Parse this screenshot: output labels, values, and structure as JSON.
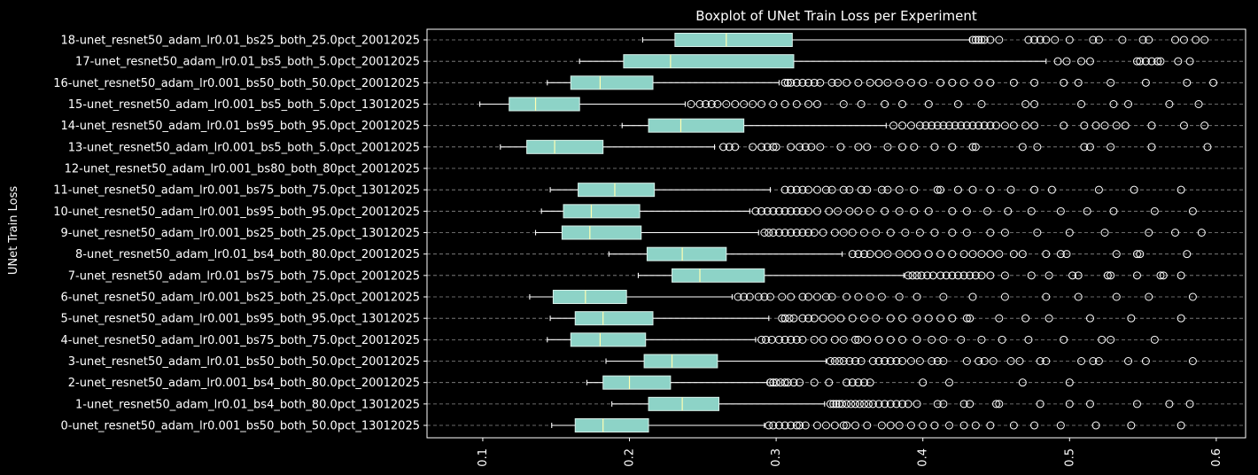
{
  "chart_data": {
    "type": "boxplot",
    "orientation": "horizontal",
    "title": "Boxplot of UNet Train Loss per Experiment",
    "xlabel": "",
    "ylabel": "UNet Train Loss",
    "xlim": [
      0.062,
      0.62
    ],
    "xticks": [
      0.1,
      0.2,
      0.3,
      0.4,
      0.5,
      0.6
    ],
    "xtick_labels": [
      "0.1",
      "0.2",
      "0.3",
      "0.4",
      "0.5",
      "0.6"
    ],
    "grid": "horizontal dashed",
    "colors": {
      "box_fill": "#8dd3c7",
      "median": "#ffffb3",
      "whisker": "#ffffff",
      "grid": "#bbbbbb",
      "background": "#000000",
      "text": "#ffffff"
    },
    "series": [
      {
        "label": "0-unet_resnet50_adam_lr0.001_bs50_both_50.0pct_13012025",
        "whislo": 0.147,
        "q1": 0.163,
        "med": 0.182,
        "q3": 0.213,
        "whishi": 0.292,
        "fliers": [
          0.295,
          0.298,
          0.302,
          0.306,
          0.31,
          0.314,
          0.316,
          0.32,
          0.328,
          0.334,
          0.34,
          0.346,
          0.348,
          0.354,
          0.362,
          0.372,
          0.378,
          0.384,
          0.392,
          0.4,
          0.408,
          0.418,
          0.428,
          0.436,
          0.446,
          0.462,
          0.476,
          0.494,
          0.518,
          0.542,
          0.576
        ]
      },
      {
        "label": "1-unet_resnet50_adam_lr0.01_bs4_both_80.0pct_13012025",
        "whislo": 0.188,
        "q1": 0.213,
        "med": 0.236,
        "q3": 0.261,
        "whishi": 0.333,
        "fliers": [
          0.337,
          0.339,
          0.341,
          0.343,
          0.345,
          0.348,
          0.351,
          0.354,
          0.357,
          0.36,
          0.363,
          0.366,
          0.37,
          0.374,
          0.378,
          0.382,
          0.386,
          0.39,
          0.396,
          0.41,
          0.414,
          0.428,
          0.432,
          0.45,
          0.452,
          0.48,
          0.5,
          0.514,
          0.546,
          0.568,
          0.582
        ]
      },
      {
        "label": "2-unet_resnet50_adam_lr0.001_bs4_both_80.0pct_20012025",
        "whislo": 0.171,
        "q1": 0.182,
        "med": 0.2,
        "q3": 0.228,
        "whishi": 0.294,
        "fliers": [
          0.296,
          0.298,
          0.3,
          0.303,
          0.306,
          0.308,
          0.312,
          0.316,
          0.326,
          0.336,
          0.348,
          0.352,
          0.356,
          0.36,
          0.364,
          0.4,
          0.418,
          0.468,
          0.5
        ]
      },
      {
        "label": "3-unet_resnet50_adam_lr0.01_bs50_both_50.0pct_20012025",
        "whislo": 0.184,
        "q1": 0.21,
        "med": 0.229,
        "q3": 0.26,
        "whishi": 0.334,
        "fliers": [
          0.337,
          0.34,
          0.343,
          0.346,
          0.35,
          0.354,
          0.358,
          0.366,
          0.37,
          0.374,
          0.378,
          0.382,
          0.386,
          0.392,
          0.398,
          0.406,
          0.41,
          0.414,
          0.43,
          0.438,
          0.442,
          0.448,
          0.46,
          0.466,
          0.48,
          0.484,
          0.508,
          0.516,
          0.52,
          0.54,
          0.552,
          0.584
        ]
      },
      {
        "label": "4-unet_resnet50_adam_lr0.001_bs75_both_75.0pct_20012025",
        "whislo": 0.144,
        "q1": 0.16,
        "med": 0.18,
        "q3": 0.211,
        "whishi": 0.286,
        "fliers": [
          0.29,
          0.293,
          0.297,
          0.302,
          0.306,
          0.31,
          0.314,
          0.318,
          0.326,
          0.332,
          0.34,
          0.346,
          0.354,
          0.356,
          0.362,
          0.37,
          0.378,
          0.386,
          0.396,
          0.406,
          0.414,
          0.426,
          0.44,
          0.454,
          0.472,
          0.496,
          0.522,
          0.528,
          0.558
        ]
      },
      {
        "label": "5-unet_resnet50_adam_lr0.001_bs95_both_95.0pct_13012025",
        "whislo": 0.146,
        "q1": 0.163,
        "med": 0.182,
        "q3": 0.216,
        "whishi": 0.295,
        "fliers": [
          0.304,
          0.306,
          0.309,
          0.312,
          0.318,
          0.322,
          0.326,
          0.332,
          0.338,
          0.344,
          0.352,
          0.36,
          0.368,
          0.378,
          0.386,
          0.396,
          0.404,
          0.412,
          0.42,
          0.43,
          0.432,
          0.452,
          0.47,
          0.486,
          0.514,
          0.542,
          0.576
        ]
      },
      {
        "label": "6-unet_resnet50_adam_lr0.001_bs25_both_25.0pct_20012025",
        "whislo": 0.132,
        "q1": 0.148,
        "med": 0.17,
        "q3": 0.198,
        "whishi": 0.27,
        "fliers": [
          0.274,
          0.278,
          0.282,
          0.288,
          0.292,
          0.296,
          0.304,
          0.31,
          0.318,
          0.322,
          0.328,
          0.334,
          0.338,
          0.348,
          0.356,
          0.364,
          0.372,
          0.384,
          0.396,
          0.414,
          0.434,
          0.456,
          0.484,
          0.506,
          0.532,
          0.554,
          0.584
        ]
      },
      {
        "label": "7-unet_resnet50_adam_lr0.01_bs75_both_75.0pct_20012025",
        "whislo": 0.206,
        "q1": 0.229,
        "med": 0.248,
        "q3": 0.292,
        "whishi": 0.387,
        "fliers": [
          0.39,
          0.393,
          0.396,
          0.399,
          0.403,
          0.407,
          0.412,
          0.416,
          0.42,
          0.424,
          0.428,
          0.432,
          0.436,
          0.44,
          0.446,
          0.456,
          0.474,
          0.486,
          0.502,
          0.506,
          0.526,
          0.528,
          0.546,
          0.562,
          0.564,
          0.576
        ]
      },
      {
        "label": "8-unet_resnet50_adam_lr0.01_bs4_both_80.0pct_20012025",
        "whislo": 0.186,
        "q1": 0.212,
        "med": 0.236,
        "q3": 0.266,
        "whishi": 0.345,
        "fliers": [
          0.352,
          0.356,
          0.36,
          0.364,
          0.37,
          0.376,
          0.384,
          0.39,
          0.396,
          0.404,
          0.412,
          0.42,
          0.428,
          0.434,
          0.44,
          0.446,
          0.452,
          0.462,
          0.468,
          0.484,
          0.494,
          0.498,
          0.532,
          0.546,
          0.548,
          0.58
        ]
      },
      {
        "label": "9-unet_resnet50_adam_lr0.001_bs25_both_25.0pct_13012025",
        "whislo": 0.136,
        "q1": 0.154,
        "med": 0.173,
        "q3": 0.208,
        "whishi": 0.288,
        "fliers": [
          0.292,
          0.295,
          0.298,
          0.302,
          0.306,
          0.31,
          0.314,
          0.318,
          0.322,
          0.326,
          0.332,
          0.34,
          0.346,
          0.352,
          0.36,
          0.368,
          0.378,
          0.388,
          0.398,
          0.408,
          0.42,
          0.43,
          0.446,
          0.456,
          0.478,
          0.5,
          0.524,
          0.554,
          0.572,
          0.59
        ]
      },
      {
        "label": "10-unet_resnet50_adam_lr0.001_bs95_both_95.0pct_20012025",
        "whislo": 0.14,
        "q1": 0.155,
        "med": 0.174,
        "q3": 0.207,
        "whishi": 0.282,
        "fliers": [
          0.286,
          0.29,
          0.294,
          0.298,
          0.302,
          0.306,
          0.31,
          0.314,
          0.318,
          0.322,
          0.328,
          0.336,
          0.342,
          0.35,
          0.356,
          0.364,
          0.374,
          0.384,
          0.394,
          0.404,
          0.42,
          0.43,
          0.444,
          0.458,
          0.474,
          0.494,
          0.512,
          0.53,
          0.558,
          0.584
        ]
      },
      {
        "label": "11-unet_resnet50_adam_lr0.001_bs75_both_75.0pct_13012025",
        "whislo": 0.146,
        "q1": 0.165,
        "med": 0.19,
        "q3": 0.217,
        "whishi": 0.296,
        "fliers": [
          0.306,
          0.31,
          0.314,
          0.318,
          0.322,
          0.328,
          0.334,
          0.338,
          0.346,
          0.35,
          0.358,
          0.362,
          0.372,
          0.376,
          0.384,
          0.394,
          0.41,
          0.412,
          0.424,
          0.434,
          0.446,
          0.46,
          0.476,
          0.488,
          0.52,
          0.544,
          0.576
        ]
      },
      {
        "label": "12-unet_resnet50_adam_lr0.001_bs80_both_80pct_20012025",
        "empty": true
      },
      {
        "label": "13-unet_resnet50_adam_lr0.001_bs5_both_5.0pct_20012025",
        "whislo": 0.112,
        "q1": 0.13,
        "med": 0.149,
        "q3": 0.182,
        "whishi": 0.258,
        "fliers": [
          0.264,
          0.268,
          0.272,
          0.284,
          0.29,
          0.294,
          0.298,
          0.3,
          0.31,
          0.316,
          0.32,
          0.324,
          0.33,
          0.344,
          0.356,
          0.362,
          0.376,
          0.386,
          0.394,
          0.408,
          0.42,
          0.434,
          0.436,
          0.468,
          0.478,
          0.51,
          0.514,
          0.528,
          0.556,
          0.594
        ]
      },
      {
        "label": "14-unet_resnet50_adam_lr0.01_bs95_both_95.0pct_20012025",
        "whislo": 0.195,
        "q1": 0.213,
        "med": 0.235,
        "q3": 0.278,
        "whishi": 0.375,
        "fliers": [
          0.38,
          0.386,
          0.392,
          0.398,
          0.402,
          0.406,
          0.41,
          0.414,
          0.418,
          0.422,
          0.426,
          0.43,
          0.434,
          0.438,
          0.442,
          0.446,
          0.45,
          0.456,
          0.462,
          0.47,
          0.476,
          0.496,
          0.51,
          0.518,
          0.524,
          0.532,
          0.538,
          0.556,
          0.578,
          0.592
        ]
      },
      {
        "label": "15-unet_resnet50_adam_lr0.001_bs5_both_5.0pct_13012025",
        "whislo": 0.098,
        "q1": 0.118,
        "med": 0.136,
        "q3": 0.166,
        "whishi": 0.238,
        "fliers": [
          0.242,
          0.248,
          0.252,
          0.256,
          0.26,
          0.266,
          0.272,
          0.278,
          0.284,
          0.29,
          0.298,
          0.306,
          0.314,
          0.322,
          0.328,
          0.346,
          0.358,
          0.374,
          0.386,
          0.404,
          0.424,
          0.44,
          0.47,
          0.476,
          0.508,
          0.53,
          0.54,
          0.568,
          0.588
        ]
      },
      {
        "label": "16-unet_resnet50_adam_lr0.001_bs50_both_50.0pct_20012025",
        "whislo": 0.144,
        "q1": 0.16,
        "med": 0.18,
        "q3": 0.216,
        "whishi": 0.302,
        "fliers": [
          0.306,
          0.308,
          0.31,
          0.314,
          0.318,
          0.322,
          0.326,
          0.33,
          0.338,
          0.342,
          0.348,
          0.356,
          0.364,
          0.37,
          0.376,
          0.384,
          0.392,
          0.4,
          0.412,
          0.42,
          0.428,
          0.438,
          0.446,
          0.462,
          0.476,
          0.496,
          0.506,
          0.528,
          0.552,
          0.58,
          0.598
        ]
      },
      {
        "label": "17-unet_resnet50_adam_lr0.01_bs5_both_5.0pct_20012025",
        "whislo": 0.166,
        "q1": 0.196,
        "med": 0.228,
        "q3": 0.312,
        "whishi": 0.484,
        "fliers": [
          0.492,
          0.498,
          0.508,
          0.514,
          0.546,
          0.548,
          0.552,
          0.556,
          0.56,
          0.562,
          0.574,
          0.582
        ]
      },
      {
        "label": "18-unet_resnet50_adam_lr0.01_bs25_both_25.0pct_20012025",
        "whislo": 0.209,
        "q1": 0.231,
        "med": 0.266,
        "q3": 0.311,
        "whishi": 0.432,
        "fliers": [
          0.434,
          0.436,
          0.438,
          0.44,
          0.442,
          0.446,
          0.452,
          0.472,
          0.476,
          0.48,
          0.484,
          0.49,
          0.5,
          0.516,
          0.52,
          0.536,
          0.55,
          0.554,
          0.572,
          0.578,
          0.586,
          0.592
        ]
      }
    ]
  }
}
